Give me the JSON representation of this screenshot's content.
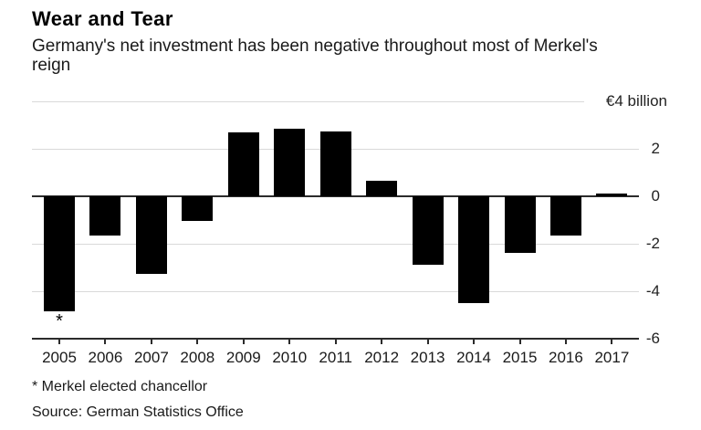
{
  "header": {
    "title": "Wear and Tear",
    "subtitle_lines": [
      "Germany's net investment has been negative throughout most of Merkel's",
      "reign"
    ]
  },
  "chart_data": {
    "type": "bar",
    "title": "Wear and Tear",
    "subtitle": "Germany's net investment has been negative throughout most of Merkel's reign",
    "xlabel": "",
    "ylabel": "€ billion",
    "unit_label": "€4 billion",
    "categories": [
      "2005",
      "2006",
      "2007",
      "2008",
      "2009",
      "2010",
      "2011",
      "2012",
      "2013",
      "2014",
      "2015",
      "2016",
      "2017"
    ],
    "values": [
      -4.85,
      -1.65,
      -3.25,
      -1.05,
      2.7,
      2.85,
      2.75,
      0.65,
      -2.9,
      -4.5,
      -2.4,
      -1.65,
      0.1
    ],
    "ylim": [
      -6,
      4
    ],
    "grid": true,
    "legend": false,
    "yticks": [
      {
        "value": 4,
        "label": "€4 billion"
      },
      {
        "value": 2,
        "label": "2"
      },
      {
        "value": 0,
        "label": "0"
      },
      {
        "value": -2,
        "label": "-2"
      },
      {
        "value": -4,
        "label": "-4"
      },
      {
        "value": -6,
        "label": "-6"
      }
    ],
    "annotation": {
      "category": "2005",
      "symbol": "*",
      "note": "Merkel elected chancellor"
    },
    "colors": {
      "bar": "#000000",
      "gridline": "#d9d9d9",
      "axis": "#2b2b2b",
      "text": "#1a1a1a"
    }
  },
  "footer": {
    "footnote": "* Merkel elected chancellor",
    "source": "Source: German Statistics Office"
  }
}
